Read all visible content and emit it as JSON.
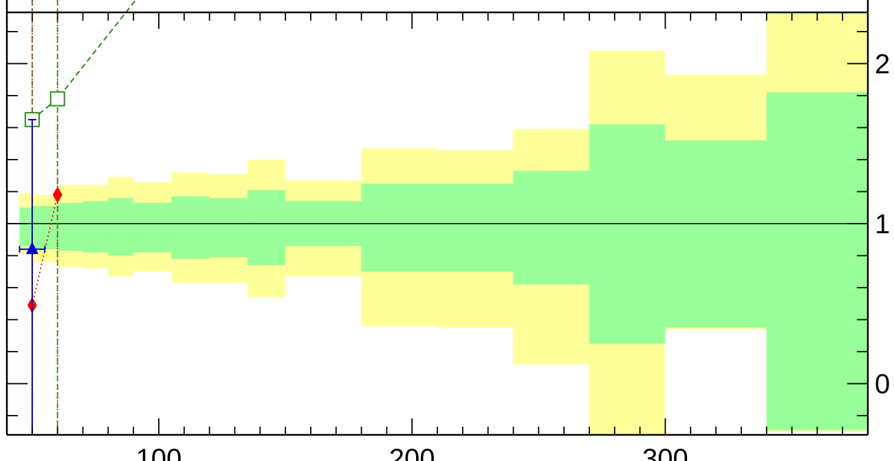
{
  "chart_data": {
    "type": "area",
    "title": "",
    "xlabel": "",
    "ylabel": "",
    "xlim": [
      40,
      380
    ],
    "ylim": [
      -0.32,
      2.32
    ],
    "x_tick_labels": [
      "100",
      "200",
      "300"
    ],
    "y_tick_labels": [
      "0",
      "1",
      "2"
    ],
    "x_ticks": [
      100,
      200,
      300
    ],
    "y_ticks": [
      0,
      1,
      2
    ],
    "x_minor_step": 10,
    "y_minor_step": 0.2,
    "grid": false,
    "reference_line_y": 1,
    "bins": [
      {
        "x0": 45,
        "x1": 50,
        "green": [
          0.86,
          1.1
        ],
        "yellow": [
          0.81,
          1.19
        ]
      },
      {
        "x0": 50,
        "x1": 60,
        "green": [
          0.84,
          1.11
        ],
        "yellow": [
          0.76,
          1.18
        ]
      },
      {
        "x0": 60,
        "x1": 70,
        "green": [
          0.83,
          1.13
        ],
        "yellow": [
          0.73,
          1.24
        ]
      },
      {
        "x0": 70,
        "x1": 80,
        "green": [
          0.82,
          1.14
        ],
        "yellow": [
          0.72,
          1.24
        ]
      },
      {
        "x0": 80,
        "x1": 90,
        "green": [
          0.8,
          1.16
        ],
        "yellow": [
          0.67,
          1.29
        ]
      },
      {
        "x0": 90,
        "x1": 105,
        "green": [
          0.82,
          1.13
        ],
        "yellow": [
          0.7,
          1.26
        ]
      },
      {
        "x0": 105,
        "x1": 120,
        "green": [
          0.78,
          1.17
        ],
        "yellow": [
          0.63,
          1.32
        ]
      },
      {
        "x0": 120,
        "x1": 135,
        "green": [
          0.79,
          1.16
        ],
        "yellow": [
          0.63,
          1.31
        ]
      },
      {
        "x0": 135,
        "x1": 150,
        "green": [
          0.74,
          1.21
        ],
        "yellow": [
          0.54,
          1.4
        ]
      },
      {
        "x0": 150,
        "x1": 180,
        "green": [
          0.86,
          1.14
        ],
        "yellow": [
          0.67,
          1.27
        ]
      },
      {
        "x0": 180,
        "x1": 210,
        "green": [
          0.7,
          1.25
        ],
        "yellow": [
          0.36,
          1.47
        ]
      },
      {
        "x0": 210,
        "x1": 240,
        "green": [
          0.7,
          1.25
        ],
        "yellow": [
          0.35,
          1.46
        ]
      },
      {
        "x0": 240,
        "x1": 270,
        "green": [
          0.62,
          1.33
        ],
        "yellow": [
          0.12,
          1.59
        ]
      },
      {
        "x0": 270,
        "x1": 300,
        "green": [
          0.25,
          1.62
        ],
        "yellow": [
          -0.32,
          2.08
        ]
      },
      {
        "x0": 300,
        "x1": 340,
        "green": [
          0.35,
          1.52
        ],
        "yellow": [
          0.34,
          1.93
        ]
      },
      {
        "x0": 340,
        "x1": 380,
        "green": [
          -0.29,
          1.82
        ],
        "yellow": [
          -0.3,
          2.32
        ]
      }
    ],
    "series": [
      {
        "style": "dashed",
        "marker": "open-square",
        "color": "#2a8a1a",
        "x": [
          50,
          60,
          96
        ],
        "y": [
          1.65,
          1.78,
          2.5
        ]
      },
      {
        "style": "dotted",
        "marker": "diamond",
        "color": "#ff0000",
        "x": [
          50,
          60
        ],
        "y": [
          0.49,
          1.18
        ]
      },
      {
        "style": "solid",
        "marker": "triangle",
        "color": "#0000cc",
        "x": [
          50
        ],
        "y": [
          0.84
        ],
        "x_err": [
          5
        ],
        "y_err_low": 1.5,
        "y_err_high": 0.81
      }
    ],
    "vertical_lines": [
      {
        "x": 50,
        "color": "#2a8a1a",
        "style": "dashed"
      },
      {
        "x": 50,
        "color": "#ff0000",
        "style": "dotted"
      },
      {
        "x": 60,
        "color": "#ff0000",
        "style": "dotted"
      },
      {
        "x": 60,
        "color": "#2a8a1a",
        "style": "dashed"
      }
    ],
    "colors": {
      "green_band": "#99ff99",
      "yellow_band": "#ffff99"
    }
  }
}
